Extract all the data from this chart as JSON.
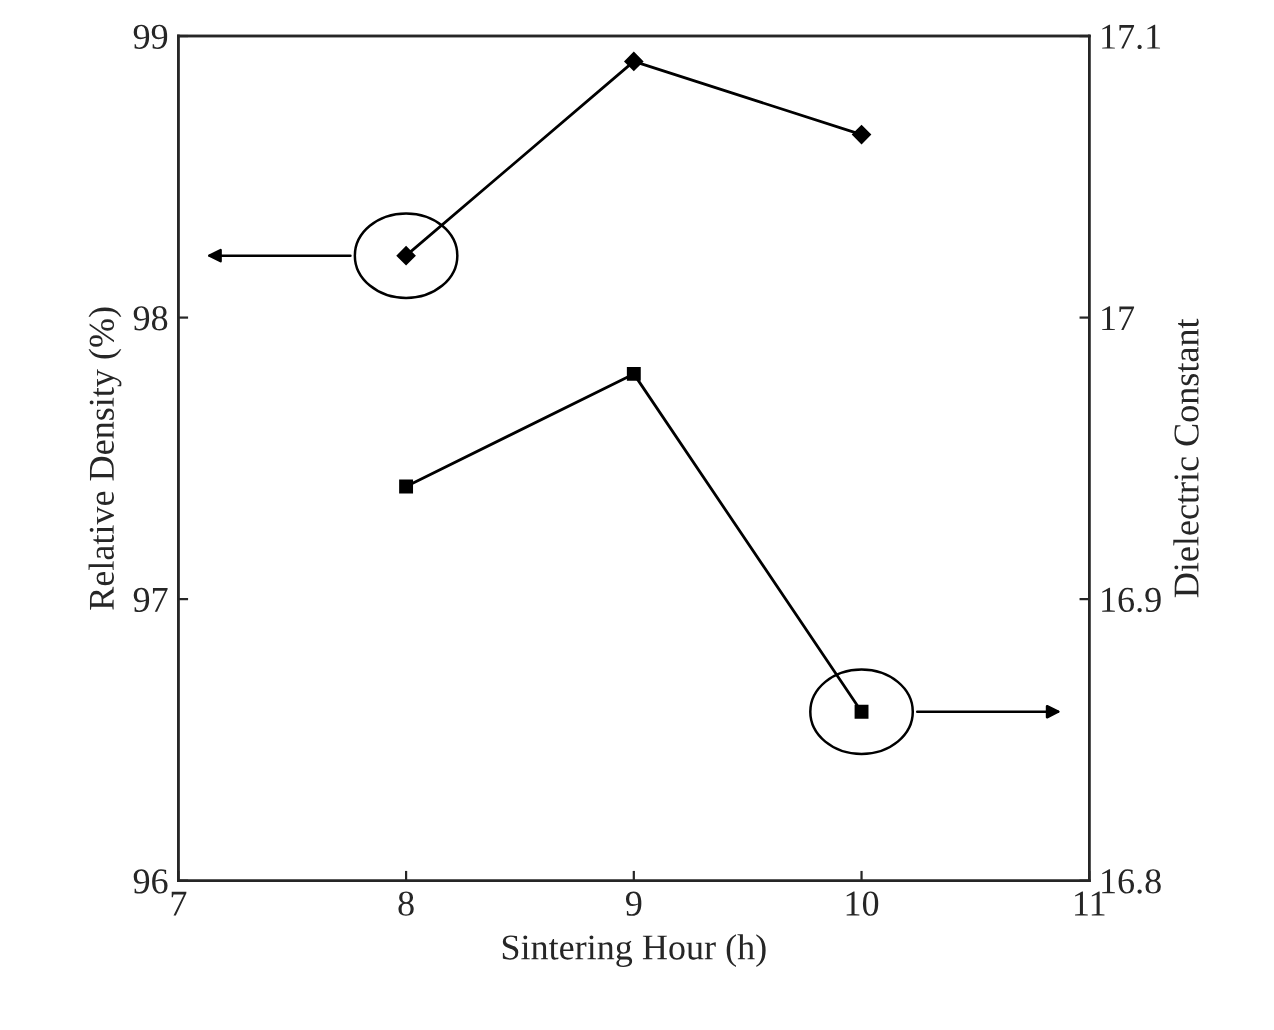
{
  "chart_data": {
    "type": "line",
    "xlabel": "Sintering Hour (h)",
    "ylabel": "Relative Density (%)",
    "y2label": "Dielectric Constant",
    "x": [
      8,
      9,
      10
    ],
    "series": [
      {
        "color": "#000000",
        "values": [
          98.22,
          98.91,
          98.65
        ],
        "marker": "diamond"
      },
      {
        "color": "#000000",
        "values": [
          16.94,
          16.98,
          16.86
        ],
        "marker": "square",
        "axis": "y2"
      }
    ],
    "xlim": [
      7,
      11
    ],
    "xticks": [
      7,
      8,
      9,
      10,
      11
    ],
    "ylim": [
      96,
      99
    ],
    "yticks": [
      96,
      97,
      98,
      99
    ],
    "y2lim": [
      16.8,
      17.1
    ],
    "y2ticks": [
      16.8,
      16.9,
      17,
      17.1
    ],
    "grid": false,
    "legend": false,
    "line_style": "solid"
  }
}
